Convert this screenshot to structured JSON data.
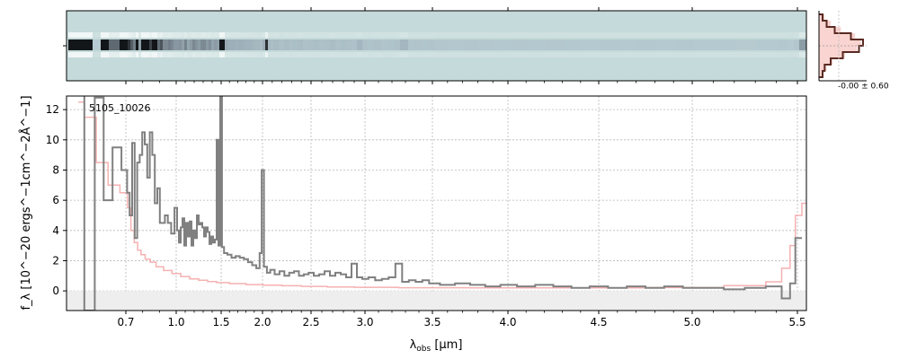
{
  "chart_data": {
    "type": "line",
    "object_label": "5105_10026",
    "xlabel_main": "λ",
    "xlabel_sub": "obs",
    "xlabel_unit": " [μm]",
    "ylabel_text": "f_λ [10^−20 ergs^−1cm^−2Å^−1]",
    "xlim": [
      0.6,
      5.52
    ],
    "ylim": [
      -1.3,
      12.9
    ],
    "x_scale": "reciprocal-like (nonlinear)",
    "x_ticks": [
      {
        "value": 0.7,
        "label": "0.7"
      },
      {
        "value": 1.0,
        "label": "1.0"
      },
      {
        "value": 1.5,
        "label": "1.5"
      },
      {
        "value": 2.0,
        "label": "2.0"
      },
      {
        "value": 2.5,
        "label": "2.5"
      },
      {
        "value": 3.0,
        "label": "3.0"
      },
      {
        "value": 3.5,
        "label": "3.5"
      },
      {
        "value": 4.0,
        "label": "4.0"
      },
      {
        "value": 4.5,
        "label": "4.5"
      },
      {
        "value": 5.0,
        "label": "5.0"
      },
      {
        "value": 5.5,
        "label": "5.5"
      }
    ],
    "y_ticks": [
      {
        "value": 0,
        "label": "0"
      },
      {
        "value": 2,
        "label": "2"
      },
      {
        "value": 4,
        "label": "4"
      },
      {
        "value": 6,
        "label": "6"
      },
      {
        "value": 8,
        "label": "8"
      },
      {
        "value": 10,
        "label": "10"
      },
      {
        "value": 12,
        "label": "12"
      }
    ],
    "grid": true,
    "series": [
      {
        "role": "flux",
        "color": "#808080",
        "style": "steps",
        "points": [
          [
            0.62,
            13.5
          ],
          [
            0.64,
            -1.3
          ],
          [
            0.655,
            12.8
          ],
          [
            0.67,
            6.0
          ],
          [
            0.685,
            9.5
          ],
          [
            0.7,
            8.0
          ],
          [
            0.715,
            6.5
          ],
          [
            0.73,
            5.0
          ],
          [
            0.745,
            9.8
          ],
          [
            0.76,
            3.5
          ],
          [
            0.775,
            8.5
          ],
          [
            0.79,
            9.0
          ],
          [
            0.805,
            10.5
          ],
          [
            0.82,
            9.7
          ],
          [
            0.835,
            7.5
          ],
          [
            0.85,
            10.5
          ],
          [
            0.865,
            9.0
          ],
          [
            0.88,
            5.8
          ],
          [
            0.895,
            6.8
          ],
          [
            0.91,
            4.5
          ],
          [
            0.925,
            4.5
          ],
          [
            0.94,
            5.0
          ],
          [
            0.96,
            4.5
          ],
          [
            0.98,
            3.8
          ],
          [
            1.0,
            5.5
          ],
          [
            1.02,
            4.0
          ],
          [
            1.04,
            3.2
          ],
          [
            1.06,
            4.2
          ],
          [
            1.08,
            4.8
          ],
          [
            1.1,
            3.0
          ],
          [
            1.12,
            4.5
          ],
          [
            1.14,
            3.6
          ],
          [
            1.16,
            4.6
          ],
          [
            1.18,
            3.0
          ],
          [
            1.2,
            4.0
          ],
          [
            1.22,
            3.5
          ],
          [
            1.24,
            5.0
          ],
          [
            1.26,
            4.4
          ],
          [
            1.28,
            4.5
          ],
          [
            1.3,
            4.2
          ],
          [
            1.32,
            3.6
          ],
          [
            1.34,
            4.2
          ],
          [
            1.36,
            3.9
          ],
          [
            1.38,
            3.1
          ],
          [
            1.4,
            3.6
          ],
          [
            1.42,
            3.2
          ],
          [
            1.44,
            3.4
          ],
          [
            1.46,
            10.0
          ],
          [
            1.48,
            3.0
          ],
          [
            1.5,
            13.5
          ],
          [
            1.52,
            2.9
          ],
          [
            1.55,
            2.5
          ],
          [
            1.6,
            2.4
          ],
          [
            1.65,
            2.2
          ],
          [
            1.7,
            2.3
          ],
          [
            1.75,
            2.2
          ],
          [
            1.8,
            2.1
          ],
          [
            1.85,
            1.9
          ],
          [
            1.9,
            1.7
          ],
          [
            1.95,
            1.5
          ],
          [
            1.98,
            2.5
          ],
          [
            2.0,
            8.0
          ],
          [
            2.03,
            1.6
          ],
          [
            2.06,
            1.2
          ],
          [
            2.1,
            1.4
          ],
          [
            2.15,
            1.1
          ],
          [
            2.2,
            1.3
          ],
          [
            2.25,
            1.0
          ],
          [
            2.3,
            1.2
          ],
          [
            2.35,
            1.3
          ],
          [
            2.4,
            1.0
          ],
          [
            2.45,
            1.1
          ],
          [
            2.5,
            1.2
          ],
          [
            2.55,
            1.0
          ],
          [
            2.6,
            1.1
          ],
          [
            2.65,
            1.3
          ],
          [
            2.7,
            1.0
          ],
          [
            2.75,
            1.2
          ],
          [
            2.8,
            1.1
          ],
          [
            2.85,
            0.9
          ],
          [
            2.9,
            1.8
          ],
          [
            2.95,
            0.9
          ],
          [
            3.0,
            0.8
          ],
          [
            3.05,
            0.9
          ],
          [
            3.1,
            0.7
          ],
          [
            3.15,
            0.8
          ],
          [
            3.2,
            0.9
          ],
          [
            3.25,
            1.8
          ],
          [
            3.3,
            0.6
          ],
          [
            3.35,
            0.7
          ],
          [
            3.4,
            0.6
          ],
          [
            3.45,
            0.7
          ],
          [
            3.5,
            0.5
          ],
          [
            3.6,
            0.4
          ],
          [
            3.7,
            0.5
          ],
          [
            3.8,
            0.4
          ],
          [
            3.9,
            0.3
          ],
          [
            4.0,
            0.4
          ],
          [
            4.1,
            0.3
          ],
          [
            4.2,
            0.4
          ],
          [
            4.3,
            0.3
          ],
          [
            4.4,
            0.2
          ],
          [
            4.5,
            0.3
          ],
          [
            4.6,
            0.2
          ],
          [
            4.7,
            0.3
          ],
          [
            4.8,
            0.2
          ],
          [
            4.9,
            0.3
          ],
          [
            5.0,
            0.2
          ],
          [
            5.1,
            0.2
          ],
          [
            5.2,
            0.1
          ],
          [
            5.3,
            0.2
          ],
          [
            5.4,
            0.3
          ],
          [
            5.45,
            -0.5
          ],
          [
            5.48,
            0.5
          ],
          [
            5.5,
            3.5
          ]
        ]
      },
      {
        "role": "error",
        "color": "#f4a3a3",
        "style": "steps",
        "points": [
          [
            0.62,
            12.5
          ],
          [
            0.64,
            11.5
          ],
          [
            0.66,
            8.5
          ],
          [
            0.68,
            7.0
          ],
          [
            0.7,
            6.5
          ],
          [
            0.72,
            5.5
          ],
          [
            0.74,
            4.0
          ],
          [
            0.76,
            3.2
          ],
          [
            0.78,
            2.7
          ],
          [
            0.8,
            2.4
          ],
          [
            0.83,
            2.1
          ],
          [
            0.86,
            1.9
          ],
          [
            0.9,
            1.6
          ],
          [
            0.95,
            1.35
          ],
          [
            1.0,
            1.15
          ],
          [
            1.1,
            0.95
          ],
          [
            1.2,
            0.8
          ],
          [
            1.3,
            0.7
          ],
          [
            1.4,
            0.62
          ],
          [
            1.5,
            0.55
          ],
          [
            1.7,
            0.48
          ],
          [
            1.9,
            0.42
          ],
          [
            2.1,
            0.38
          ],
          [
            2.3,
            0.34
          ],
          [
            2.5,
            0.3
          ],
          [
            2.8,
            0.26
          ],
          [
            3.0,
            0.24
          ],
          [
            3.5,
            0.21
          ],
          [
            4.0,
            0.2
          ],
          [
            4.5,
            0.2
          ],
          [
            5.0,
            0.22
          ],
          [
            5.3,
            0.35
          ],
          [
            5.4,
            0.6
          ],
          [
            5.45,
            1.5
          ],
          [
            5.48,
            3.0
          ],
          [
            5.5,
            5.0
          ],
          [
            5.52,
            5.8
          ]
        ]
      }
    ],
    "inset_label": "-0.00 ± 0.60"
  }
}
